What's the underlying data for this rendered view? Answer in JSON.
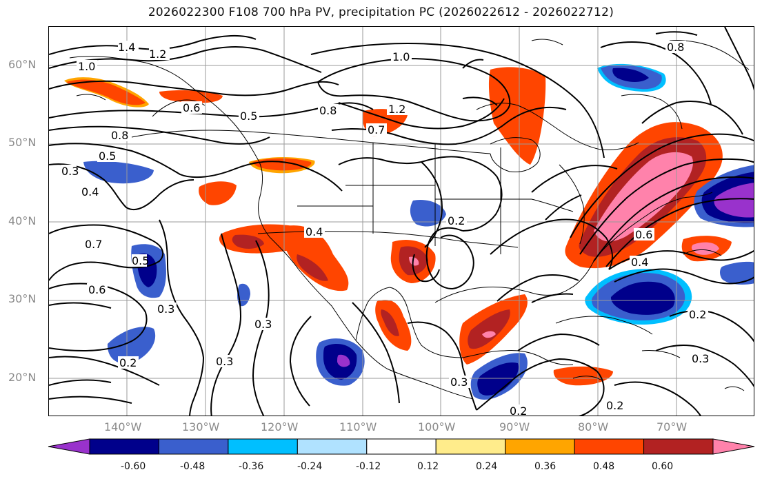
{
  "title": "2026022300 F108 700 hPa PV, precipitation PC (2026022612 - 2026022712)",
  "lat_labels": [
    "60°N",
    "50°N",
    "40°N",
    "30°N",
    "20°N"
  ],
  "lon_labels": [
    "140°W",
    "130°W",
    "120°W",
    "110°W",
    "100°W",
    "90°W",
    "80°W",
    "70°W"
  ],
  "contour_labels": [
    "1.4",
    "1.2",
    "1.0",
    "1.0",
    "0.6",
    "0.5",
    "0.8",
    "0.5",
    "0.3",
    "0.4",
    "0.8",
    "1.2",
    "0.7",
    "0.7",
    "0.6",
    "0.5",
    "0.3",
    "0.2",
    "0.3",
    "0.3",
    "0.2",
    "0.4",
    "0.3",
    "0.6",
    "0.4",
    "0.2",
    "0.3",
    "0.2",
    "0.8",
    "0.2"
  ],
  "colorbar": {
    "colors": [
      "#9932cc",
      "#00008b",
      "#3a5fcd",
      "#00bfff",
      "#b0e2ff",
      "#ffffff",
      "#ffec8b",
      "#ffa500",
      "#ff4500",
      "#b22222",
      "#ff82ab"
    ],
    "tick_labels": [
      "-0.60",
      "-0.48",
      "-0.36",
      "-0.24",
      "-0.12",
      "0.12",
      "0.24",
      "0.36",
      "0.48",
      "0.60"
    ]
  }
}
